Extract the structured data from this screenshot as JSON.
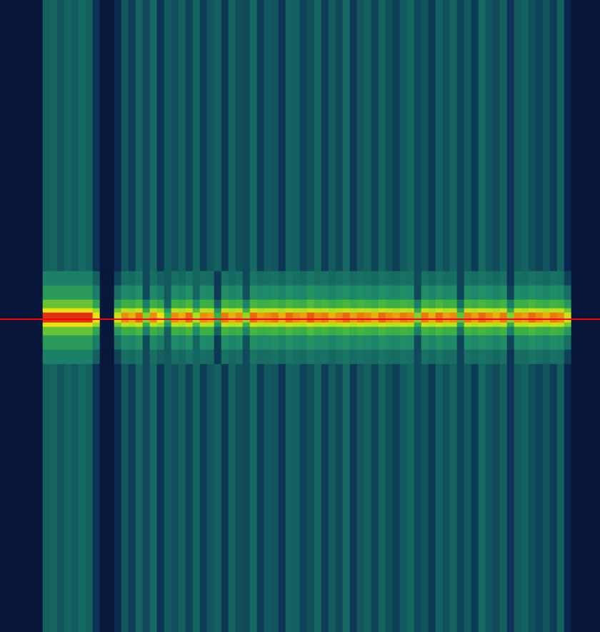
{
  "chart_data": {
    "type": "heatmap",
    "tick_labels": false,
    "grid": false,
    "xlim": [
      0,
      84
    ],
    "ylim": [
      0,
      885
    ],
    "y_edges": [
      0,
      375,
      395,
      415,
      427,
      433,
      441,
      447,
      453,
      465,
      485,
      505,
      885
    ],
    "zlim": [
      0,
      100
    ],
    "cells": [
      [
        6,
        6,
        7,
        6,
        6,
        7,
        30,
        32,
        28,
        31,
        29,
        33,
        30,
        22,
        8,
        8,
        20,
        28,
        24,
        31,
        26,
        33,
        22,
        29,
        27,
        30,
        25,
        32,
        24,
        28,
        30,
        23,
        31,
        27,
        26,
        33,
        24,
        29,
        28,
        22,
        31,
        30,
        25,
        27,
        32,
        24,
        29,
        26,
        33,
        23,
        28,
        30,
        25,
        31,
        27,
        24,
        29,
        32,
        26,
        28,
        23,
        30,
        27,
        31,
        25,
        29,
        24,
        33,
        28,
        26,
        30,
        22,
        29,
        31,
        27,
        25,
        28,
        24,
        30,
        18,
        6,
        7,
        6,
        6
      ],
      [
        6,
        6,
        7,
        6,
        6,
        7,
        41,
        41,
        41,
        41,
        41,
        41,
        41,
        30,
        8,
        8,
        25,
        35,
        33,
        37,
        26,
        35,
        30,
        29,
        35,
        33,
        37,
        32,
        35,
        34,
        23,
        36,
        33,
        35,
        26,
        37,
        34,
        35,
        36,
        33,
        37,
        35,
        34,
        38,
        35,
        36,
        33,
        35,
        37,
        34,
        36,
        35,
        33,
        37,
        35,
        34,
        36,
        35,
        26,
        36,
        33,
        37,
        34,
        35,
        25,
        36,
        34,
        37,
        35,
        33,
        36,
        22,
        35,
        34,
        37,
        35,
        33,
        36,
        35,
        25,
        6,
        7,
        6,
        6
      ],
      [
        6,
        6,
        7,
        6,
        6,
        7,
        51,
        51,
        51,
        51,
        51,
        51,
        51,
        40,
        8,
        8,
        35,
        45,
        43,
        47,
        26,
        45,
        40,
        29,
        45,
        43,
        47,
        32,
        45,
        44,
        23,
        46,
        43,
        45,
        27,
        47,
        44,
        45,
        46,
        43,
        47,
        45,
        44,
        48,
        45,
        46,
        43,
        45,
        47,
        44,
        46,
        45,
        43,
        47,
        45,
        44,
        46,
        45,
        26,
        46,
        43,
        47,
        44,
        45,
        25,
        46,
        44,
        47,
        45,
        43,
        46,
        25,
        45,
        44,
        47,
        45,
        43,
        46,
        45,
        35,
        6,
        7,
        6,
        6
      ],
      [
        6,
        6,
        7,
        6,
        6,
        7,
        66,
        66,
        66,
        66,
        66,
        66,
        66,
        55,
        8,
        8,
        50,
        60,
        58,
        62,
        40,
        60,
        55,
        30,
        60,
        58,
        62,
        45,
        60,
        59,
        30,
        61,
        58,
        60,
        42,
        62,
        59,
        60,
        61,
        58,
        62,
        60,
        59,
        63,
        60,
        61,
        58,
        60,
        62,
        59,
        61,
        60,
        58,
        62,
        60,
        59,
        61,
        60,
        40,
        61,
        58,
        62,
        59,
        60,
        35,
        61,
        59,
        62,
        60,
        58,
        61,
        40,
        60,
        59,
        62,
        60,
        58,
        61,
        60,
        50,
        6,
        7,
        6,
        6
      ],
      [
        6,
        6,
        7,
        6,
        6,
        7,
        84,
        84,
        84,
        84,
        84,
        84,
        84,
        73,
        8,
        8,
        68,
        78,
        76,
        80,
        58,
        78,
        73,
        48,
        78,
        76,
        80,
        63,
        78,
        77,
        48,
        79,
        76,
        78,
        60,
        80,
        77,
        78,
        79,
        76,
        80,
        78,
        77,
        81,
        78,
        79,
        76,
        78,
        80,
        77,
        79,
        78,
        76,
        80,
        78,
        77,
        79,
        78,
        58,
        79,
        76,
        80,
        77,
        78,
        53,
        79,
        77,
        80,
        78,
        76,
        79,
        58,
        78,
        77,
        80,
        78,
        76,
        79,
        78,
        68,
        6,
        7,
        6,
        6
      ],
      [
        6,
        6,
        7,
        6,
        6,
        7,
        96,
        96,
        96,
        96,
        96,
        96,
        96,
        85,
        8,
        8,
        80,
        90,
        88,
        92,
        70,
        90,
        85,
        60,
        90,
        88,
        92,
        75,
        90,
        89,
        60,
        91,
        88,
        90,
        72,
        92,
        89,
        90,
        91,
        88,
        92,
        90,
        89,
        93,
        90,
        91,
        88,
        90,
        92,
        89,
        91,
        90,
        88,
        92,
        90,
        89,
        91,
        90,
        70,
        91,
        88,
        92,
        89,
        90,
        65,
        91,
        89,
        92,
        90,
        88,
        91,
        70,
        90,
        89,
        92,
        90,
        88,
        91,
        90,
        80,
        6,
        7,
        6,
        6
      ],
      [
        6,
        6,
        7,
        6,
        6,
        7,
        96,
        96,
        96,
        96,
        96,
        96,
        96,
        85,
        8,
        8,
        80,
        90,
        88,
        92,
        70,
        90,
        85,
        60,
        90,
        88,
        92,
        75,
        90,
        89,
        60,
        91,
        88,
        90,
        72,
        92,
        89,
        90,
        91,
        88,
        92,
        90,
        89,
        93,
        90,
        91,
        88,
        90,
        92,
        89,
        91,
        90,
        88,
        92,
        90,
        89,
        91,
        90,
        70,
        91,
        88,
        92,
        89,
        90,
        65,
        91,
        89,
        92,
        90,
        88,
        91,
        70,
        90,
        89,
        92,
        90,
        88,
        91,
        90,
        80,
        6,
        7,
        6,
        6
      ],
      [
        6,
        6,
        7,
        6,
        6,
        7,
        84,
        84,
        84,
        84,
        84,
        84,
        84,
        73,
        8,
        8,
        68,
        78,
        76,
        80,
        58,
        78,
        73,
        48,
        78,
        76,
        80,
        63,
        78,
        77,
        48,
        79,
        76,
        78,
        60,
        80,
        77,
        78,
        79,
        76,
        80,
        78,
        77,
        81,
        78,
        79,
        76,
        78,
        80,
        77,
        79,
        78,
        76,
        80,
        78,
        77,
        79,
        78,
        58,
        79,
        76,
        80,
        77,
        78,
        53,
        79,
        77,
        80,
        78,
        76,
        79,
        58,
        78,
        77,
        80,
        78,
        76,
        79,
        78,
        68,
        6,
        7,
        6,
        6
      ],
      [
        6,
        6,
        7,
        6,
        6,
        7,
        66,
        66,
        66,
        66,
        66,
        66,
        66,
        55,
        8,
        8,
        50,
        60,
        58,
        62,
        40,
        60,
        55,
        30,
        60,
        58,
        62,
        45,
        60,
        59,
        30,
        61,
        58,
        60,
        42,
        62,
        59,
        60,
        61,
        58,
        62,
        60,
        59,
        63,
        60,
        61,
        58,
        60,
        62,
        59,
        61,
        60,
        58,
        62,
        60,
        59,
        61,
        60,
        40,
        61,
        58,
        62,
        59,
        60,
        35,
        61,
        59,
        62,
        60,
        58,
        61,
        40,
        60,
        59,
        62,
        60,
        58,
        61,
        60,
        50,
        6,
        7,
        6,
        6
      ],
      [
        6,
        6,
        7,
        6,
        6,
        7,
        51,
        51,
        51,
        51,
        51,
        51,
        51,
        40,
        8,
        8,
        35,
        45,
        43,
        47,
        26,
        45,
        40,
        29,
        45,
        43,
        47,
        32,
        45,
        44,
        23,
        46,
        43,
        45,
        27,
        47,
        44,
        45,
        46,
        43,
        47,
        45,
        44,
        48,
        45,
        46,
        43,
        45,
        47,
        44,
        46,
        45,
        43,
        47,
        45,
        44,
        46,
        45,
        26,
        46,
        43,
        47,
        44,
        45,
        25,
        46,
        44,
        47,
        45,
        43,
        46,
        25,
        45,
        44,
        47,
        45,
        43,
        46,
        45,
        35,
        6,
        7,
        6,
        6
      ],
      [
        6,
        6,
        7,
        6,
        6,
        7,
        41,
        41,
        41,
        41,
        41,
        41,
        41,
        30,
        8,
        8,
        25,
        35,
        33,
        37,
        26,
        35,
        30,
        29,
        35,
        33,
        37,
        32,
        35,
        34,
        23,
        36,
        33,
        35,
        26,
        37,
        34,
        35,
        36,
        33,
        37,
        35,
        34,
        38,
        35,
        36,
        33,
        35,
        37,
        34,
        36,
        35,
        33,
        37,
        35,
        34,
        36,
        35,
        26,
        36,
        33,
        37,
        34,
        35,
        25,
        36,
        34,
        37,
        35,
        33,
        36,
        22,
        35,
        34,
        37,
        35,
        33,
        36,
        35,
        25,
        6,
        7,
        6,
        6
      ],
      [
        6,
        6,
        7,
        6,
        6,
        7,
        30,
        32,
        28,
        31,
        29,
        33,
        30,
        22,
        8,
        8,
        20,
        28,
        24,
        31,
        26,
        33,
        22,
        29,
        27,
        30,
        25,
        32,
        24,
        28,
        30,
        23,
        31,
        27,
        26,
        33,
        24,
        29,
        28,
        22,
        31,
        30,
        25,
        27,
        32,
        24,
        29,
        26,
        33,
        23,
        28,
        30,
        25,
        31,
        27,
        24,
        29,
        32,
        26,
        28,
        23,
        30,
        27,
        31,
        25,
        29,
        24,
        33,
        28,
        26,
        30,
        22,
        29,
        31,
        27,
        25,
        28,
        24,
        30,
        18,
        6,
        7,
        6,
        6
      ]
    ],
    "marker_line": {
      "y": 438,
      "color": "#ff0000"
    }
  }
}
